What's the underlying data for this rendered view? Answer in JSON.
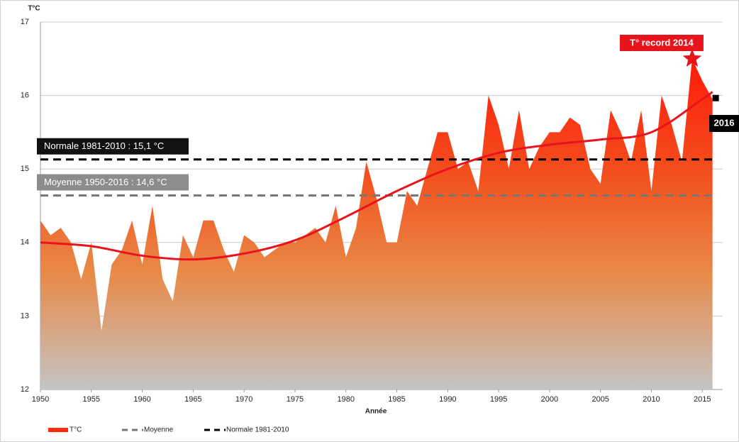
{
  "chart_data": {
    "type": "area",
    "y_label": "T°C",
    "x_label": "Année",
    "x": [
      1950,
      1951,
      1952,
      1953,
      1954,
      1955,
      1956,
      1957,
      1958,
      1959,
      1960,
      1961,
      1962,
      1963,
      1964,
      1965,
      1966,
      1967,
      1968,
      1969,
      1970,
      1971,
      1972,
      1973,
      1974,
      1975,
      1976,
      1977,
      1978,
      1979,
      1980,
      1981,
      1982,
      1983,
      1984,
      1985,
      1986,
      1987,
      1988,
      1989,
      1990,
      1991,
      1992,
      1993,
      1994,
      1995,
      1996,
      1997,
      1998,
      1999,
      2000,
      2001,
      2002,
      2003,
      2004,
      2005,
      2006,
      2007,
      2008,
      2009,
      2010,
      2011,
      2012,
      2013,
      2014,
      2015,
      2016
    ],
    "series": [
      {
        "name": "T°C",
        "color": "#ff2a0a",
        "values": [
          14.3,
          14.1,
          14.2,
          14.0,
          13.5,
          14.0,
          12.8,
          13.7,
          13.9,
          14.3,
          13.7,
          14.5,
          13.5,
          13.2,
          14.1,
          13.8,
          14.3,
          14.3,
          13.9,
          13.6,
          14.1,
          14.0,
          13.8,
          13.9,
          14.0,
          14.0,
          14.1,
          14.2,
          14.0,
          14.5,
          13.8,
          14.2,
          15.1,
          14.6,
          14.0,
          14.0,
          14.7,
          14.5,
          15.0,
          15.5,
          15.5,
          15.0,
          15.1,
          14.7,
          16.0,
          15.6,
          15.0,
          15.8,
          15.0,
          15.3,
          15.5,
          15.5,
          15.7,
          15.6,
          15.0,
          14.8,
          15.8,
          15.5,
          15.1,
          15.8,
          14.7,
          16.0,
          15.6,
          15.1,
          16.5,
          16.2,
          15.95
        ]
      }
    ],
    "trend": {
      "color": "#e8141c",
      "x": [
        1950,
        1955,
        1960,
        1965,
        1970,
        1975,
        1980,
        1985,
        1990,
        1995,
        2000,
        2005,
        2010,
        2015,
        2016
      ],
      "values": [
        14.0,
        13.95,
        13.82,
        13.77,
        13.85,
        14.03,
        14.35,
        14.7,
        15.0,
        15.22,
        15.33,
        15.4,
        15.5,
        15.95,
        16.05
      ]
    },
    "reference_lines": [
      {
        "name": "Moyenne",
        "label": "Moyenne 1950-2016 : 14,6 °C",
        "value": 14.64,
        "color": "#777777",
        "box_color": "#8c8c8c"
      },
      {
        "name": "Normale 1981-2010",
        "label": "Normale 1981-2010 : 15,1 °C",
        "value": 15.13,
        "color": "#000000",
        "box_color": "#111111"
      }
    ],
    "annotations": [
      {
        "text": "T° record 2014",
        "x": 2014,
        "y": 16.5,
        "color": "#e8141c"
      },
      {
        "text": "2016",
        "x": 2016,
        "y": 15.97,
        "color": "#000000"
      }
    ],
    "xlim": [
      1950,
      2017
    ],
    "ylim": [
      12,
      17
    ],
    "xticks": [
      1950,
      1955,
      1960,
      1965,
      1970,
      1975,
      1980,
      1985,
      1990,
      1995,
      2000,
      2005,
      2010,
      2015
    ],
    "yticks": [
      12,
      13,
      14,
      15,
      16,
      17
    ],
    "grid": true,
    "legend": "bottom"
  }
}
